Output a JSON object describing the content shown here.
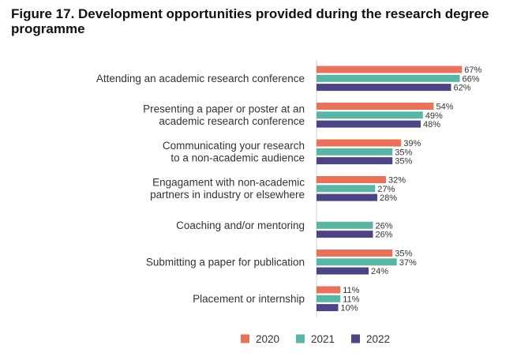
{
  "figure": {
    "title": "Figure 17. Development opportunities provided during the research degree programme"
  },
  "chart_data": {
    "type": "bar",
    "orientation": "horizontal",
    "title": "Figure 17. Development opportunities provided during the research degree programme",
    "xlabel": "",
    "ylabel": "",
    "xlim": [
      0,
      100
    ],
    "grid": false,
    "legend_position": "bottom",
    "categories": [
      [
        "Attending an academic research conference"
      ],
      [
        "Presenting a paper or poster at an",
        "academic research conference"
      ],
      [
        "Communicating your research",
        "to a non-academic audience"
      ],
      [
        "Engagament with non-academic",
        "partners in industry or elsewhere"
      ],
      [
        "Coaching and/or mentoring"
      ],
      [
        "Submitting a paper for publication"
      ],
      [
        "Placement or internship"
      ]
    ],
    "series": [
      {
        "name": "2020",
        "color": "#e8735a",
        "values": [
          67,
          54,
          39,
          32,
          null,
          35,
          11
        ],
        "labels": [
          "67%",
          "54%",
          "39%",
          "32%",
          "",
          "35%",
          "11%"
        ]
      },
      {
        "name": "2021",
        "color": "#5bb5a4",
        "values": [
          66,
          49,
          35,
          27,
          26,
          37,
          11
        ],
        "labels": [
          "66%",
          "49%",
          "35%",
          "27%",
          "26%",
          "37%",
          "11%"
        ]
      },
      {
        "name": "2022",
        "color": "#4d4484",
        "values": [
          62,
          48,
          35,
          28,
          26,
          24,
          10
        ],
        "labels": [
          "62%",
          "48%",
          "35%",
          "28%",
          "26%",
          "24%",
          "10%"
        ]
      }
    ]
  }
}
